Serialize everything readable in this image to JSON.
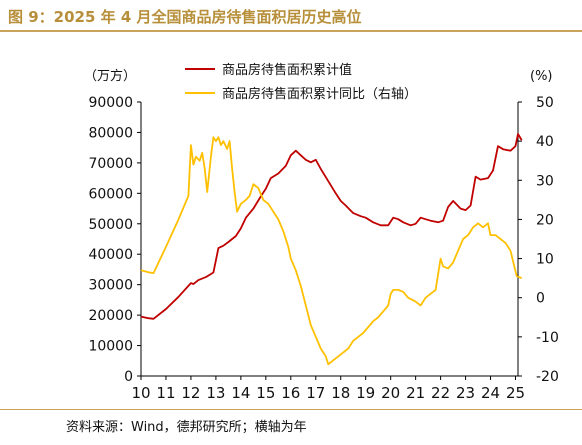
{
  "page": {
    "title": "图 9：2025 年 4 月全国商品房待售面积居历史高位",
    "source": "资料来源：Wind，德邦研究所；横轴为年"
  },
  "colors": {
    "title": "#b78f3a",
    "rule": "#c9a45a",
    "series_area": "#c00000",
    "series_yoy": "#ffc000"
  },
  "chart_data": {
    "type": "line",
    "left_unit": "（万方）",
    "right_unit": "(%)",
    "y_left": {
      "min": 0,
      "max": 90000,
      "ticks": [
        0,
        10000,
        20000,
        30000,
        40000,
        50000,
        60000,
        70000,
        80000,
        90000
      ]
    },
    "y_right": {
      "min": -20,
      "max": 50,
      "ticks": [
        -20,
        -10,
        0,
        10,
        20,
        30,
        40,
        50
      ]
    },
    "x": {
      "min": 10,
      "max": 25.1,
      "ticks": [
        "10",
        "11",
        "12",
        "13",
        "14",
        "15",
        "16",
        "17",
        "18",
        "19",
        "20",
        "21",
        "22",
        "23",
        "24",
        "25"
      ]
    },
    "grid": false,
    "legend_position": "top-center",
    "series": [
      {
        "name": "商品房待售面积累计值",
        "axis": "left",
        "color": "#c00000",
        "points": [
          [
            10.0,
            19500
          ],
          [
            10.3,
            19000
          ],
          [
            10.5,
            18800
          ],
          [
            11.0,
            22000
          ],
          [
            11.5,
            26000
          ],
          [
            12.0,
            30500
          ],
          [
            12.1,
            30200
          ],
          [
            12.3,
            31500
          ],
          [
            12.6,
            32500
          ],
          [
            12.9,
            34000
          ],
          [
            13.1,
            42000
          ],
          [
            13.3,
            42800
          ],
          [
            13.5,
            44000
          ],
          [
            13.8,
            46000
          ],
          [
            14.0,
            48500
          ],
          [
            14.2,
            52000
          ],
          [
            14.5,
            55000
          ],
          [
            14.8,
            59000
          ],
          [
            15.0,
            61500
          ],
          [
            15.2,
            65000
          ],
          [
            15.5,
            66500
          ],
          [
            15.8,
            69000
          ],
          [
            16.0,
            72500
          ],
          [
            16.2,
            74000
          ],
          [
            16.4,
            72500
          ],
          [
            16.6,
            71000
          ],
          [
            16.8,
            70200
          ],
          [
            17.0,
            71000
          ],
          [
            17.2,
            68000
          ],
          [
            17.5,
            64000
          ],
          [
            17.8,
            60000
          ],
          [
            18.0,
            57500
          ],
          [
            18.2,
            56000
          ],
          [
            18.5,
            53500
          ],
          [
            18.8,
            52500
          ],
          [
            19.0,
            52000
          ],
          [
            19.3,
            50500
          ],
          [
            19.6,
            49500
          ],
          [
            19.9,
            49500
          ],
          [
            20.1,
            52000
          ],
          [
            20.3,
            51500
          ],
          [
            20.5,
            50500
          ],
          [
            20.8,
            49500
          ],
          [
            21.0,
            50000
          ],
          [
            21.2,
            52000
          ],
          [
            21.4,
            51500
          ],
          [
            21.6,
            51000
          ],
          [
            21.9,
            50500
          ],
          [
            22.1,
            51000
          ],
          [
            22.3,
            55500
          ],
          [
            22.5,
            57500
          ],
          [
            22.8,
            55000
          ],
          [
            23.0,
            54500
          ],
          [
            23.2,
            56000
          ],
          [
            23.4,
            65500
          ],
          [
            23.6,
            64500
          ],
          [
            23.9,
            65000
          ],
          [
            24.1,
            67500
          ],
          [
            24.3,
            75500
          ],
          [
            24.5,
            74500
          ],
          [
            24.8,
            74000
          ],
          [
            25.0,
            75500
          ],
          [
            25.1,
            79500
          ],
          [
            25.25,
            77500
          ]
        ]
      },
      {
        "name": "商品房待售面积累计同比（右轴）",
        "axis": "right",
        "color": "#ffc000",
        "points": [
          [
            10.0,
            7
          ],
          [
            10.3,
            6.5
          ],
          [
            10.5,
            6.3
          ],
          [
            11.0,
            13
          ],
          [
            11.5,
            20
          ],
          [
            11.9,
            26
          ],
          [
            12.0,
            39
          ],
          [
            12.1,
            34
          ],
          [
            12.2,
            36
          ],
          [
            12.35,
            35
          ],
          [
            12.45,
            37
          ],
          [
            12.55,
            33
          ],
          [
            12.65,
            27
          ],
          [
            12.8,
            36
          ],
          [
            12.9,
            41
          ],
          [
            13.0,
            40
          ],
          [
            13.1,
            41
          ],
          [
            13.2,
            39
          ],
          [
            13.3,
            40
          ],
          [
            13.45,
            38
          ],
          [
            13.55,
            40
          ],
          [
            13.65,
            33
          ],
          [
            13.75,
            27
          ],
          [
            13.85,
            22
          ],
          [
            14.0,
            24
          ],
          [
            14.2,
            25
          ],
          [
            14.35,
            26
          ],
          [
            14.5,
            29
          ],
          [
            14.7,
            28
          ],
          [
            14.9,
            25
          ],
          [
            15.1,
            24
          ],
          [
            15.3,
            22
          ],
          [
            15.5,
            20
          ],
          [
            15.7,
            17
          ],
          [
            15.9,
            13
          ],
          [
            16.0,
            10
          ],
          [
            16.2,
            7
          ],
          [
            16.4,
            3
          ],
          [
            16.6,
            -2
          ],
          [
            16.8,
            -7
          ],
          [
            17.0,
            -10
          ],
          [
            17.2,
            -13
          ],
          [
            17.4,
            -15
          ],
          [
            17.5,
            -17
          ],
          [
            17.7,
            -16
          ],
          [
            17.9,
            -15
          ],
          [
            18.1,
            -14
          ],
          [
            18.3,
            -13
          ],
          [
            18.5,
            -11
          ],
          [
            18.7,
            -10
          ],
          [
            18.9,
            -9
          ],
          [
            19.1,
            -7.5
          ],
          [
            19.3,
            -6
          ],
          [
            19.5,
            -5
          ],
          [
            19.7,
            -3.5
          ],
          [
            19.9,
            -2
          ],
          [
            20.0,
            1
          ],
          [
            20.1,
            2
          ],
          [
            20.3,
            2
          ],
          [
            20.5,
            1.5
          ],
          [
            20.7,
            0
          ],
          [
            21.0,
            -1
          ],
          [
            21.2,
            -2
          ],
          [
            21.4,
            0
          ],
          [
            21.6,
            1
          ],
          [
            21.8,
            2
          ],
          [
            22.0,
            10
          ],
          [
            22.1,
            8
          ],
          [
            22.3,
            7.5
          ],
          [
            22.5,
            9
          ],
          [
            22.7,
            12
          ],
          [
            22.9,
            15
          ],
          [
            23.1,
            16
          ],
          [
            23.3,
            18
          ],
          [
            23.5,
            19
          ],
          [
            23.7,
            18
          ],
          [
            23.9,
            19
          ],
          [
            24.0,
            16
          ],
          [
            24.2,
            16
          ],
          [
            24.4,
            15
          ],
          [
            24.6,
            14
          ],
          [
            24.8,
            12
          ],
          [
            24.95,
            8
          ],
          [
            25.05,
            5.5
          ],
          [
            25.25,
            5
          ]
        ]
      }
    ]
  }
}
